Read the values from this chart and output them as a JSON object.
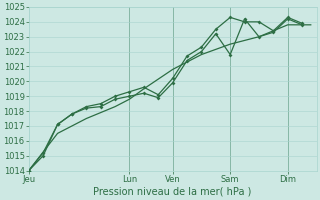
{
  "xlabel": "Pression niveau de la mer( hPa )",
  "bg_color": "#cde8e3",
  "grid_color": "#a8d4ce",
  "line_color": "#2d6e44",
  "ylim": [
    1014,
    1025
  ],
  "yticks": [
    1014,
    1015,
    1016,
    1017,
    1018,
    1019,
    1020,
    1021,
    1022,
    1023,
    1024,
    1025
  ],
  "day_labels": [
    "Jeu",
    "Lun",
    "Ven",
    "Sam",
    "Dim"
  ],
  "day_positions": [
    0.0,
    3.5,
    5.0,
    7.0,
    9.0
  ],
  "vline_positions": [
    3.5,
    5.0,
    7.0,
    9.0
  ],
  "xlim": [
    0,
    10.0
  ],
  "smooth_x": [
    0,
    1,
    2,
    3,
    3.5,
    4,
    5,
    6,
    7,
    8,
    9,
    9.8
  ],
  "smooth_y": [
    1014.0,
    1016.5,
    1017.5,
    1018.3,
    1018.8,
    1019.5,
    1020.8,
    1021.8,
    1022.5,
    1023.0,
    1023.8,
    1023.8
  ],
  "line2_x": [
    0,
    0.5,
    1.0,
    1.5,
    2.0,
    2.5,
    3.0,
    3.5,
    4.0,
    4.5,
    5.0,
    5.5,
    6.0,
    6.5,
    7.0,
    7.5,
    8.0,
    8.5,
    9.0,
    9.5
  ],
  "line2_y": [
    1014.0,
    1015.0,
    1017.1,
    1017.8,
    1018.2,
    1018.3,
    1018.8,
    1019.0,
    1019.2,
    1018.9,
    1019.9,
    1021.4,
    1022.0,
    1023.2,
    1021.8,
    1024.2,
    1023.0,
    1023.3,
    1024.2,
    1023.8
  ],
  "line3_x": [
    0,
    0.5,
    1.0,
    1.5,
    2.0,
    2.5,
    3.0,
    3.5,
    4.0,
    4.5,
    5.0,
    5.5,
    6.0,
    6.5,
    7.0,
    7.5,
    8.0,
    8.5,
    9.0,
    9.5
  ],
  "line3_y": [
    1014.0,
    1015.2,
    1017.1,
    1017.8,
    1018.3,
    1018.5,
    1019.0,
    1019.3,
    1019.6,
    1019.1,
    1020.2,
    1021.7,
    1022.3,
    1023.5,
    1024.3,
    1024.0,
    1024.0,
    1023.4,
    1024.3,
    1023.9
  ],
  "font_size_axis": 7,
  "font_size_tick": 6,
  "marker_size": 2.0,
  "line_width": 0.9
}
